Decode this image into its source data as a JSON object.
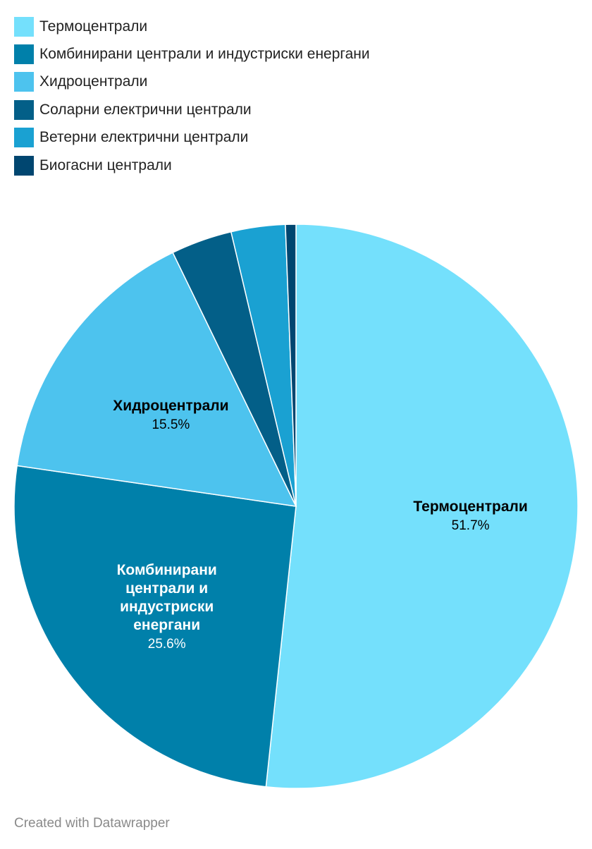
{
  "chart_data": {
    "type": "pie",
    "categories": [
      "Термоцентрали",
      "Комбинирани централи и индустриски енергани",
      "Хидроцентрали",
      "Соларни електрични централи",
      "Ветерни електрични централи",
      "Биогасни централи"
    ],
    "values": [
      51.7,
      25.6,
      15.5,
      3.5,
      3.1,
      0.6
    ],
    "value_labels": [
      "51.7%",
      "25.6%",
      "15.5%",
      "",
      "",
      ""
    ],
    "slice_labels": [
      [
        "Термоцентрали"
      ],
      [
        "Комбинирани",
        "централи и",
        "индустриски",
        "енергани"
      ],
      [
        "Хидроцентрали"
      ],
      [],
      [],
      []
    ],
    "colors": [
      "#74e0fc",
      "#0080aa",
      "#4dc3ee",
      "#035f88",
      "#1aa1d2",
      "#004670"
    ],
    "label_colors": [
      "#000000",
      "#ffffff",
      "#000000",
      "#000000",
      "#000000",
      "#000000"
    ],
    "legend_position": "top-left",
    "title": "",
    "xlabel": "",
    "ylabel": ""
  },
  "footer": {
    "credit": "Created with Datawrapper"
  }
}
